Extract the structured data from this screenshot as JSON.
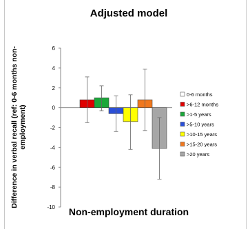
{
  "chart_data": {
    "type": "bar",
    "title": "Adjusted model",
    "xlabel": "Non-employment duration",
    "ylabel": "Difference in verbal recall (ref: 0-6 months non-employment)",
    "ylabel_lines": [
      "Difference in verbal recall (ref: 0-6 months non-",
      "employment)"
    ],
    "ylim": [
      -10,
      6
    ],
    "yticks": [
      -10,
      -8,
      -6,
      -4,
      -2,
      0,
      2,
      4,
      6
    ],
    "grid": false,
    "legend_position": "right",
    "series": [
      {
        "name": "0-6 months",
        "value": 0.0,
        "err_low": 0.0,
        "err_high": 0.0,
        "color": "#ffffff"
      },
      {
        "name": ">6-12 months",
        "value": 0.8,
        "err_low": -1.5,
        "err_high": 3.1,
        "color": "#e00000"
      },
      {
        "name": ">1-5 years",
        "value": 1.0,
        "err_low": -0.3,
        "err_high": 2.2,
        "color": "#1aa83a"
      },
      {
        "name": ">5-10 years",
        "value": -0.6,
        "err_low": -2.4,
        "err_high": 1.2,
        "color": "#2a4fd8"
      },
      {
        "name": ">10-15 years",
        "value": -1.4,
        "err_low": -4.2,
        "err_high": 1.3,
        "color": "#ffff00"
      },
      {
        "name": ">15-20 years",
        "value": 0.8,
        "err_low": -2.3,
        "err_high": 3.9,
        "color": "#f0781e"
      },
      {
        "name": ">20 years",
        "value": -4.1,
        "err_low": -7.2,
        "err_high": -1.0,
        "color": "#a6a6a6"
      }
    ]
  }
}
